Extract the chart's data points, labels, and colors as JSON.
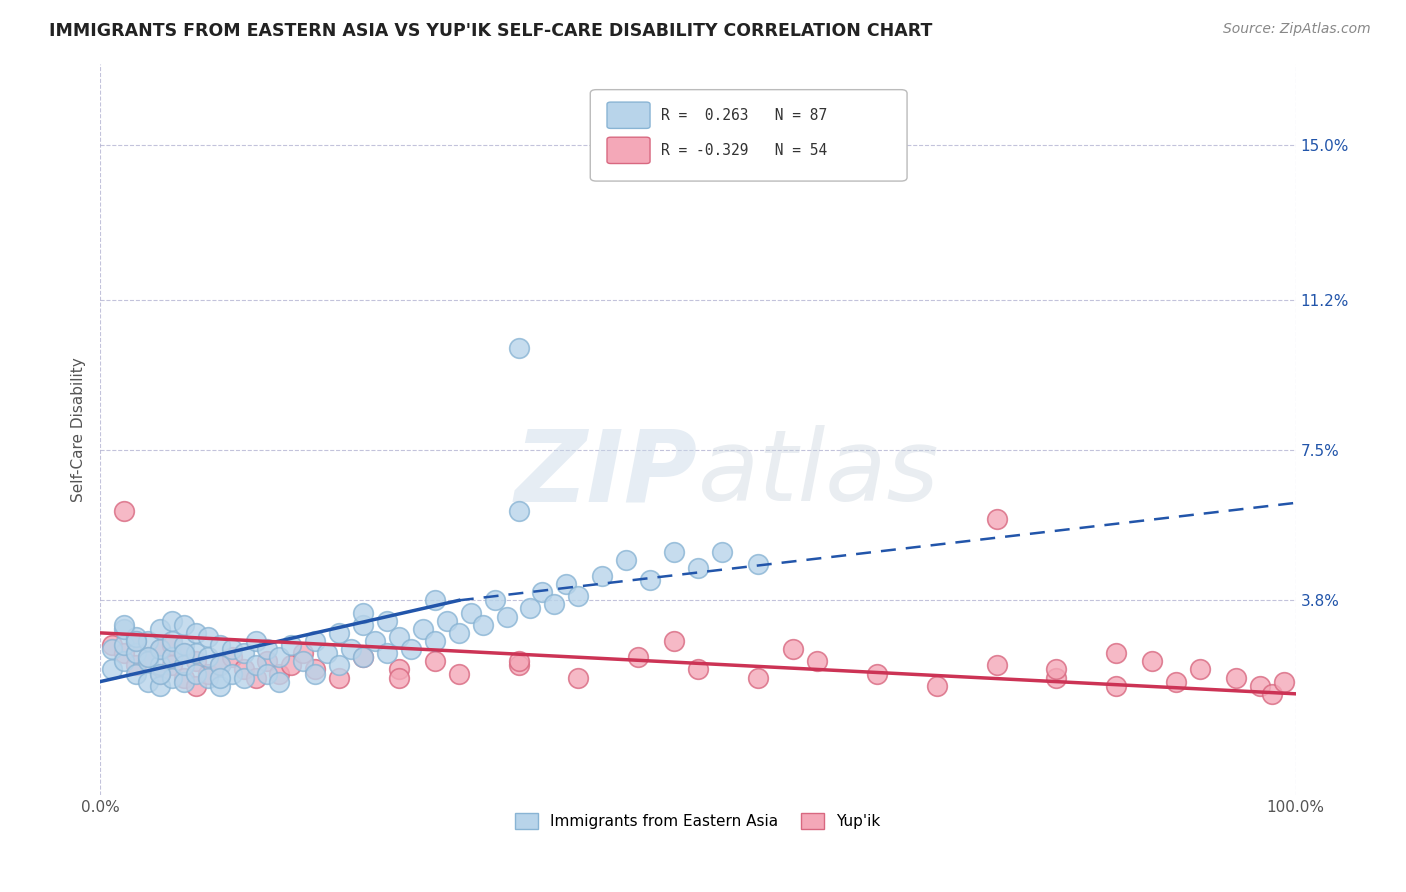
{
  "title": "IMMIGRANTS FROM EASTERN ASIA VS YUP'IK SELF-CARE DISABILITY CORRELATION CHART",
  "source": "Source: ZipAtlas.com",
  "ylabel": "Self-Care Disability",
  "y_tick_labels": [
    "3.8%",
    "7.5%",
    "11.2%",
    "15.0%"
  ],
  "y_tick_values": [
    0.038,
    0.075,
    0.112,
    0.15
  ],
  "xlim": [
    0.0,
    1.0
  ],
  "ylim": [
    -0.01,
    0.17
  ],
  "legend_blue_label": "Immigrants from Eastern Asia",
  "legend_pink_label": "Yup'ik",
  "r_blue": 0.263,
  "n_blue": 87,
  "r_pink": -0.329,
  "n_pink": 54,
  "blue_color": "#b8d4ea",
  "blue_edge": "#89b4d4",
  "pink_color": "#f4a8b8",
  "pink_edge": "#d86880",
  "trend_blue_solid": "#2255aa",
  "trend_blue_dash": "#2255aa",
  "trend_pink": "#cc3355",
  "background": "#ffffff",
  "grid_color": "#aaaacc",
  "blue_trend_start_x": 0.0,
  "blue_trend_start_y": 0.018,
  "blue_trend_solid_end_x": 0.3,
  "blue_trend_solid_end_y": 0.038,
  "blue_trend_dash_end_x": 1.0,
  "blue_trend_dash_end_y": 0.062,
  "pink_trend_start_x": 0.0,
  "pink_trend_start_y": 0.03,
  "pink_trend_end_x": 1.0,
  "pink_trend_end_y": 0.015,
  "blue_scatter_x": [
    0.01,
    0.01,
    0.02,
    0.02,
    0.02,
    0.03,
    0.03,
    0.03,
    0.04,
    0.04,
    0.04,
    0.05,
    0.05,
    0.05,
    0.05,
    0.06,
    0.06,
    0.06,
    0.06,
    0.07,
    0.07,
    0.07,
    0.07,
    0.08,
    0.08,
    0.08,
    0.09,
    0.09,
    0.09,
    0.1,
    0.1,
    0.1,
    0.11,
    0.11,
    0.12,
    0.12,
    0.13,
    0.13,
    0.14,
    0.14,
    0.15,
    0.15,
    0.16,
    0.17,
    0.18,
    0.18,
    0.19,
    0.2,
    0.2,
    0.21,
    0.22,
    0.22,
    0.23,
    0.24,
    0.24,
    0.25,
    0.26,
    0.27,
    0.28,
    0.29,
    0.3,
    0.31,
    0.32,
    0.33,
    0.34,
    0.35,
    0.36,
    0.37,
    0.38,
    0.39,
    0.4,
    0.42,
    0.44,
    0.46,
    0.48,
    0.5,
    0.52,
    0.55,
    0.35,
    0.28,
    0.22,
    0.1,
    0.07,
    0.05,
    0.04,
    0.03,
    0.02
  ],
  "blue_scatter_y": [
    0.021,
    0.026,
    0.023,
    0.027,
    0.031,
    0.02,
    0.025,
    0.029,
    0.018,
    0.023,
    0.028,
    0.017,
    0.022,
    0.026,
    0.031,
    0.019,
    0.024,
    0.028,
    0.033,
    0.018,
    0.022,
    0.027,
    0.032,
    0.02,
    0.025,
    0.03,
    0.019,
    0.024,
    0.029,
    0.017,
    0.022,
    0.027,
    0.02,
    0.026,
    0.019,
    0.025,
    0.022,
    0.028,
    0.02,
    0.026,
    0.018,
    0.024,
    0.027,
    0.023,
    0.02,
    0.028,
    0.025,
    0.022,
    0.03,
    0.026,
    0.024,
    0.032,
    0.028,
    0.025,
    0.033,
    0.029,
    0.026,
    0.031,
    0.028,
    0.033,
    0.03,
    0.035,
    0.032,
    0.038,
    0.034,
    0.1,
    0.036,
    0.04,
    0.037,
    0.042,
    0.039,
    0.044,
    0.048,
    0.043,
    0.05,
    0.046,
    0.05,
    0.047,
    0.06,
    0.038,
    0.035,
    0.019,
    0.025,
    0.02,
    0.024,
    0.028,
    0.032
  ],
  "pink_scatter_x": [
    0.01,
    0.02,
    0.02,
    0.03,
    0.03,
    0.04,
    0.05,
    0.05,
    0.06,
    0.06,
    0.07,
    0.07,
    0.08,
    0.08,
    0.09,
    0.1,
    0.11,
    0.12,
    0.13,
    0.14,
    0.15,
    0.16,
    0.17,
    0.18,
    0.2,
    0.22,
    0.25,
    0.28,
    0.3,
    0.35,
    0.4,
    0.45,
    0.5,
    0.55,
    0.6,
    0.65,
    0.7,
    0.75,
    0.8,
    0.85,
    0.88,
    0.9,
    0.92,
    0.95,
    0.97,
    0.98,
    0.99,
    0.75,
    0.8,
    0.85,
    0.58,
    0.48,
    0.35,
    0.25
  ],
  "pink_scatter_y": [
    0.027,
    0.025,
    0.06,
    0.022,
    0.028,
    0.024,
    0.02,
    0.026,
    0.022,
    0.027,
    0.019,
    0.025,
    0.017,
    0.023,
    0.02,
    0.022,
    0.024,
    0.021,
    0.019,
    0.023,
    0.02,
    0.022,
    0.025,
    0.021,
    0.019,
    0.024,
    0.021,
    0.023,
    0.02,
    0.022,
    0.019,
    0.024,
    0.021,
    0.019,
    0.023,
    0.02,
    0.017,
    0.022,
    0.019,
    0.017,
    0.023,
    0.018,
    0.021,
    0.019,
    0.017,
    0.015,
    0.018,
    0.058,
    0.021,
    0.025,
    0.026,
    0.028,
    0.023,
    0.019
  ]
}
